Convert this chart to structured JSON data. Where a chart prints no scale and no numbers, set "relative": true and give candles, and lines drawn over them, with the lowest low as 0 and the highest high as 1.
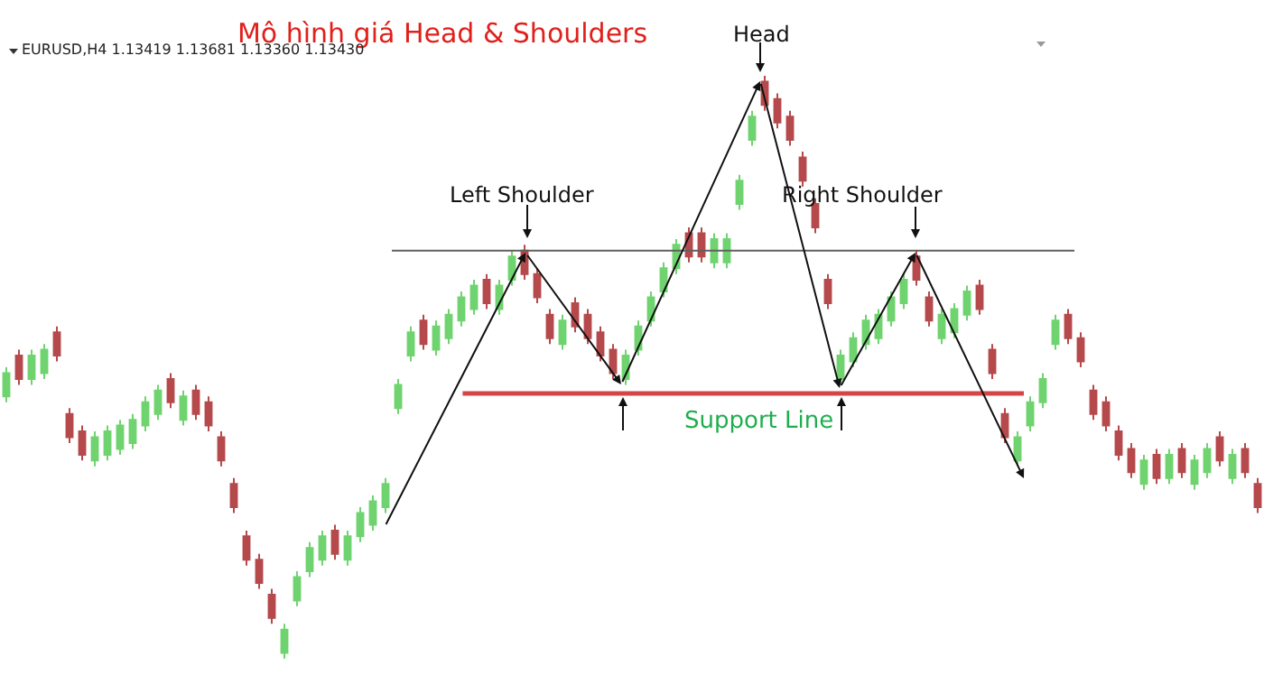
{
  "chart_data": {
    "type": "candlestick",
    "title": "Mô hình giá Head & Shoulders",
    "subtitle": "EURUSD,H4 1.13419 1.13681 1.13360 1.13430",
    "relative": true,
    "grid": false,
    "tick_labels": false,
    "categories": [
      null,
      null,
      null,
      null,
      null,
      null,
      null,
      null,
      null,
      null,
      null,
      null,
      null,
      null,
      null,
      null,
      null,
      null,
      null,
      null,
      null,
      null,
      null,
      null,
      null,
      null,
      null,
      null,
      null,
      null,
      null,
      null,
      null,
      null,
      null,
      null,
      null,
      null,
      null,
      null,
      null,
      null,
      null,
      null,
      null,
      null,
      null,
      null,
      null,
      null,
      null,
      null,
      null,
      null,
      null,
      null,
      null,
      null,
      null,
      null,
      null,
      null,
      null,
      null,
      null,
      null,
      null,
      null,
      null,
      null,
      null,
      null,
      null,
      null,
      null,
      null,
      null,
      null,
      null,
      null,
      null,
      null,
      null,
      null,
      null,
      null,
      null,
      null,
      null,
      null,
      null,
      null,
      null,
      null,
      null,
      null,
      null,
      null,
      null,
      null
    ],
    "ohlc": [
      [
        0.45,
        0.5,
        0.44,
        0.49
      ],
      [
        0.52,
        0.53,
        0.47,
        0.48
      ],
      [
        0.48,
        0.53,
        0.47,
        0.52
      ],
      [
        0.49,
        0.54,
        0.48,
        0.53
      ],
      [
        0.56,
        0.57,
        0.51,
        0.52
      ],
      [
        0.42,
        0.43,
        0.37,
        0.38
      ],
      [
        0.39,
        0.4,
        0.34,
        0.35
      ],
      [
        0.34,
        0.39,
        0.33,
        0.38
      ],
      [
        0.35,
        0.4,
        0.34,
        0.39
      ],
      [
        0.36,
        0.41,
        0.35,
        0.4
      ],
      [
        0.37,
        0.42,
        0.36,
        0.41
      ],
      [
        0.4,
        0.45,
        0.39,
        0.44
      ],
      [
        0.42,
        0.47,
        0.41,
        0.46
      ],
      [
        0.48,
        0.49,
        0.43,
        0.44
      ],
      [
        0.41,
        0.46,
        0.4,
        0.45
      ],
      [
        0.46,
        0.47,
        0.41,
        0.42
      ],
      [
        0.44,
        0.45,
        0.39,
        0.4
      ],
      [
        0.38,
        0.39,
        0.33,
        0.34
      ],
      [
        0.3,
        0.31,
        0.25,
        0.26
      ],
      [
        0.21,
        0.22,
        0.16,
        0.17
      ],
      [
        0.17,
        0.18,
        0.12,
        0.13
      ],
      [
        0.11,
        0.12,
        0.06,
        0.07
      ],
      [
        0.01,
        0.06,
        0,
        0.05
      ],
      [
        0.1,
        0.15,
        0.09,
        0.14
      ],
      [
        0.15,
        0.2,
        0.14,
        0.19
      ],
      [
        0.17,
        0.22,
        0.16,
        0.21
      ],
      [
        0.22,
        0.23,
        0.17,
        0.18
      ],
      [
        0.17,
        0.22,
        0.16,
        0.21
      ],
      [
        0.21,
        0.26,
        0.2,
        0.25
      ],
      [
        0.23,
        0.28,
        0.22,
        0.27
      ],
      [
        0.26,
        0.31,
        0.25,
        0.3
      ],
      [
        0.43,
        0.48,
        0.42,
        0.47
      ],
      [
        0.52,
        0.57,
        0.51,
        0.56
      ],
      [
        0.58,
        0.59,
        0.53,
        0.54
      ],
      [
        0.53,
        0.58,
        0.52,
        0.57
      ],
      [
        0.55,
        0.6,
        0.54,
        0.59
      ],
      [
        0.58,
        0.63,
        0.57,
        0.62
      ],
      [
        0.6,
        0.65,
        0.59,
        0.64
      ],
      [
        0.65,
        0.66,
        0.6,
        0.61
      ],
      [
        0.6,
        0.65,
        0.59,
        0.64
      ],
      [
        0.65,
        0.7,
        0.64,
        0.69
      ],
      [
        0.7,
        0.71,
        0.65,
        0.66
      ],
      [
        0.66,
        0.67,
        0.61,
        0.62
      ],
      [
        0.59,
        0.6,
        0.54,
        0.55
      ],
      [
        0.54,
        0.59,
        0.53,
        0.58
      ],
      [
        0.61,
        0.62,
        0.56,
        0.57
      ],
      [
        0.59,
        0.6,
        0.54,
        0.55
      ],
      [
        0.56,
        0.57,
        0.51,
        0.52
      ],
      [
        0.53,
        0.54,
        0.48,
        0.49
      ],
      [
        0.48,
        0.53,
        0.47,
        0.52
      ],
      [
        0.53,
        0.58,
        0.52,
        0.57
      ],
      [
        0.58,
        0.63,
        0.57,
        0.62
      ],
      [
        0.63,
        0.68,
        0.62,
        0.67
      ],
      [
        0.67,
        0.72,
        0.66,
        0.71
      ],
      [
        0.73,
        0.74,
        0.68,
        0.69
      ],
      [
        0.73,
        0.74,
        0.68,
        0.69
      ],
      [
        0.68,
        0.73,
        0.67,
        0.72
      ],
      [
        0.68,
        0.73,
        0.67,
        0.72
      ],
      [
        0.78,
        0.83,
        0.77,
        0.82
      ],
      [
        0.89,
        0.94,
        0.88,
        0.93
      ],
      [
        0.99,
        1,
        0.94,
        0.95
      ],
      [
        0.96,
        0.97,
        0.91,
        0.92
      ],
      [
        0.93,
        0.94,
        0.88,
        0.89
      ],
      [
        0.86,
        0.87,
        0.81,
        0.82
      ],
      [
        0.78,
        0.79,
        0.73,
        0.74
      ],
      [
        0.65,
        0.66,
        0.6,
        0.61
      ],
      [
        0.48,
        0.53,
        0.47,
        0.52
      ],
      [
        0.51,
        0.56,
        0.5,
        0.55
      ],
      [
        0.54,
        0.59,
        0.53,
        0.58
      ],
      [
        0.55,
        0.6,
        0.54,
        0.59
      ],
      [
        0.58,
        0.63,
        0.57,
        0.62
      ],
      [
        0.61,
        0.66,
        0.6,
        0.65
      ],
      [
        0.69,
        0.7,
        0.64,
        0.65
      ],
      [
        0.62,
        0.63,
        0.57,
        0.58
      ],
      [
        0.55,
        0.6,
        0.54,
        0.59
      ],
      [
        0.56,
        0.61,
        0.55,
        0.6
      ],
      [
        0.59,
        0.64,
        0.58,
        0.63
      ],
      [
        0.64,
        0.65,
        0.59,
        0.6
      ],
      [
        0.53,
        0.54,
        0.48,
        0.49
      ],
      [
        0.42,
        0.43,
        0.37,
        0.38
      ],
      [
        0.34,
        0.39,
        0.33,
        0.38
      ],
      [
        0.4,
        0.45,
        0.39,
        0.44
      ],
      [
        0.44,
        0.49,
        0.43,
        0.48
      ],
      [
        0.54,
        0.59,
        0.53,
        0.58
      ],
      [
        0.59,
        0.6,
        0.54,
        0.55
      ],
      [
        0.55,
        0.56,
        0.5,
        0.51
      ],
      [
        0.46,
        0.47,
        0.41,
        0.42
      ],
      [
        0.44,
        0.45,
        0.39,
        0.4
      ],
      [
        0.39,
        0.4,
        0.34,
        0.35
      ],
      [
        0.36,
        0.37,
        0.31,
        0.32
      ],
      [
        0.3,
        0.35,
        0.29,
        0.34
      ],
      [
        0.35,
        0.36,
        0.3,
        0.31
      ],
      [
        0.31,
        0.36,
        0.3,
        0.35
      ],
      [
        0.36,
        0.37,
        0.31,
        0.32
      ],
      [
        0.3,
        0.35,
        0.29,
        0.34
      ],
      [
        0.32,
        0.37,
        0.31,
        0.36
      ],
      [
        0.38,
        0.39,
        0.33,
        0.34
      ],
      [
        0.31,
        0.36,
        0.3,
        0.35
      ],
      [
        0.36,
        0.37,
        0.31,
        0.32
      ],
      [
        0.3,
        0.31,
        0.25,
        0.26
      ]
    ],
    "colors": [
      "#6fd36f",
      "#b5494b",
      "#6fd36f",
      "#6fd36f",
      "#b5494b",
      "#b5494b",
      "#b5494b",
      "#6fd36f",
      "#6fd36f",
      "#6fd36f",
      "#6fd36f",
      "#6fd36f",
      "#6fd36f",
      "#b5494b",
      "#6fd36f",
      "#b5494b",
      "#b5494b",
      "#b5494b",
      "#b5494b",
      "#b5494b",
      "#b5494b",
      "#b5494b",
      "#6fd36f",
      "#6fd36f",
      "#6fd36f",
      "#6fd36f",
      "#b5494b",
      "#6fd36f",
      "#6fd36f",
      "#6fd36f",
      "#6fd36f",
      "#6fd36f",
      "#6fd36f",
      "#b5494b",
      "#6fd36f",
      "#6fd36f",
      "#6fd36f",
      "#6fd36f",
      "#b5494b",
      "#6fd36f",
      "#6fd36f",
      "#b5494b",
      "#b5494b",
      "#b5494b",
      "#6fd36f",
      "#b5494b",
      "#b5494b",
      "#b5494b",
      "#b5494b",
      "#6fd36f",
      "#6fd36f",
      "#6fd36f",
      "#6fd36f",
      "#6fd36f",
      "#b5494b",
      "#b5494b",
      "#6fd36f",
      "#6fd36f",
      "#6fd36f",
      "#6fd36f",
      "#b5494b",
      "#b5494b",
      "#b5494b",
      "#b5494b",
      "#b5494b",
      "#b5494b",
      "#6fd36f",
      "#6fd36f",
      "#6fd36f",
      "#6fd36f",
      "#6fd36f",
      "#6fd36f",
      "#b5494b",
      "#b5494b",
      "#6fd36f",
      "#6fd36f",
      "#6fd36f",
      "#b5494b",
      "#b5494b",
      "#b5494b",
      "#6fd36f",
      "#6fd36f",
      "#6fd36f",
      "#6fd36f",
      "#b5494b",
      "#b5494b",
      "#b5494b",
      "#b5494b",
      "#b5494b",
      "#b5494b",
      "#6fd36f",
      "#b5494b",
      "#6fd36f",
      "#b5494b",
      "#6fd36f",
      "#6fd36f",
      "#b5494b",
      "#6fd36f",
      "#b5494b",
      "#b5494b"
    ],
    "ref_lines": [
      {
        "axis": "y",
        "value": 0.7,
        "color": "#606060"
      },
      {
        "axis": "y",
        "value": 0.455,
        "label": "Support Line",
        "color": "#d64545"
      }
    ],
    "annotations": [
      "Head",
      "Left Shoulder",
      "Right Shoulder"
    ]
  }
}
